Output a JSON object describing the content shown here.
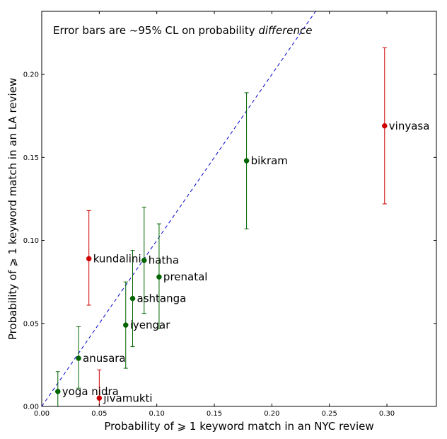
{
  "chart_data": {
    "type": "scatter",
    "annotation": {
      "prefix": "Error bars are ~95% CL on probability ",
      "emphasis": "difference"
    },
    "xlabel": "Probability of ⩾ 1 keyword match in an NYC review",
    "ylabel": "Probability of ⩾ 1 keyword match in an LA review",
    "xlim": [
      0.0,
      0.343
    ],
    "ylim": [
      0.0,
      0.238
    ],
    "xticks": [
      "0.00",
      "0.05",
      "0.10",
      "0.15",
      "0.20",
      "0.25",
      "0.30"
    ],
    "yticks": [
      "0.00",
      "0.05",
      "0.10",
      "0.15",
      "0.20"
    ],
    "diagonal": "y = x (dashed)",
    "colors": {
      "significant": "#cc0000",
      "not_significant": "#006400",
      "diagonal": "#0000cc"
    },
    "points": [
      {
        "label": "vinyasa",
        "x": 0.298,
        "y": 0.169,
        "lo": 0.122,
        "hi": 0.216,
        "color": "#cc0000"
      },
      {
        "label": "bikram",
        "x": 0.178,
        "y": 0.148,
        "lo": 0.107,
        "hi": 0.189,
        "color": "#006400"
      },
      {
        "label": "kundalini",
        "x": 0.041,
        "y": 0.089,
        "lo": 0.061,
        "hi": 0.118,
        "color": "#cc0000"
      },
      {
        "label": "hatha",
        "x": 0.089,
        "y": 0.088,
        "lo": 0.056,
        "hi": 0.12,
        "color": "#006400"
      },
      {
        "label": "prenatal",
        "x": 0.102,
        "y": 0.078,
        "lo": 0.047,
        "hi": 0.11,
        "color": "#006400"
      },
      {
        "label": "ashtanga",
        "x": 0.079,
        "y": 0.065,
        "lo": 0.036,
        "hi": 0.094,
        "color": "#006400"
      },
      {
        "label": "iyengar",
        "x": 0.073,
        "y": 0.049,
        "lo": 0.023,
        "hi": 0.075,
        "color": "#006400"
      },
      {
        "label": "anusara",
        "x": 0.032,
        "y": 0.029,
        "lo": 0.011,
        "hi": 0.048,
        "color": "#006400"
      },
      {
        "label": "yoga nidra",
        "x": 0.014,
        "y": 0.009,
        "lo": 0.0,
        "hi": 0.021,
        "color": "#006400"
      },
      {
        "label": "jivamukti",
        "x": 0.05,
        "y": 0.005,
        "lo": 0.0,
        "hi": 0.022,
        "color": "#cc0000"
      }
    ]
  }
}
